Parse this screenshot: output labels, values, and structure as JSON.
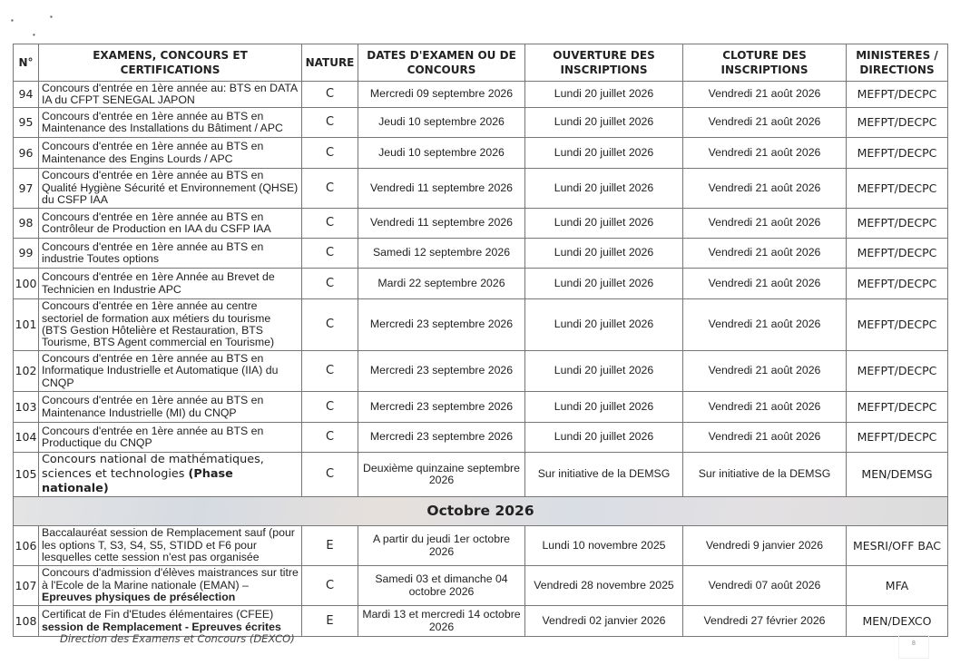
{
  "headers": {
    "num": "N°",
    "exam": "EXAMENS, CONCOURS ET CERTIFICATIONS",
    "nature": "NATURE",
    "dates": "DATES D'EXAMEN OU DE CONCOURS",
    "ouverture": "OUVERTURE DES INSCRIPTIONS",
    "cloture": "CLOTURE DES INSCRIPTIONS",
    "ministeres": "MINISTERES / DIRECTIONS"
  },
  "rows": [
    {
      "num": "94",
      "desc": "Concours d'entrée en 1ère année au: BTS en DATA IA du CFPT SENEGAL JAPON",
      "desc_bold": "",
      "nature": "C",
      "date": "Mercredi 09 septembre 2026",
      "ouverture": "Lundi 20 juillet 2026",
      "cloture": "Vendredi 21 août 2026",
      "ministere": "MEFPT/DECPC"
    },
    {
      "num": "95",
      "desc": "Concours d'entrée en 1ère année au BTS en Maintenance des Installations du Bâtiment / APC",
      "desc_bold": "",
      "nature": "C",
      "date": "Jeudi 10 septembre 2026",
      "ouverture": "Lundi 20 juillet 2026",
      "cloture": "Vendredi 21 août 2026",
      "ministere": "MEFPT/DECPC"
    },
    {
      "num": "96",
      "desc": "Concours d'entrée en 1ère année au BTS en Maintenance des Engins Lourds / APC",
      "desc_bold": "",
      "nature": "C",
      "date": "Jeudi 10 septembre 2026",
      "ouverture": "Lundi 20 juillet 2026",
      "cloture": "Vendredi 21 août 2026",
      "ministere": "MEFPT/DECPC"
    },
    {
      "num": "97",
      "desc": "Concours d'entrée en 1ère année au BTS en Qualité Hygiène Sécurité et Environnement (QHSE) du CSFP IAA",
      "desc_bold": "",
      "nature": "C",
      "date": "Vendredi 11 septembre 2026",
      "ouverture": "Lundi 20 juillet 2026",
      "cloture": "Vendredi 21 août 2026",
      "ministere": "MEFPT/DECPC"
    },
    {
      "num": "98",
      "desc": "Concours d'entrée en 1ère année au BTS en Contrôleur de Production en IAA du CSFP IAA",
      "desc_bold": "",
      "nature": "C",
      "date": "Vendredi 11 septembre 2026",
      "ouverture": "Lundi 20 juillet 2026",
      "cloture": "Vendredi 21 août 2026",
      "ministere": "MEFPT/DECPC"
    },
    {
      "num": "99",
      "desc": "Concours d'entrée en 1ère année au BTS en industrie Toutes options",
      "desc_bold": "",
      "nature": "C",
      "date": "Samedi 12 septembre 2026",
      "ouverture": "Lundi 20 juillet 2026",
      "cloture": "Vendredi 21 août 2026",
      "ministere": "MEFPT/DECPC"
    },
    {
      "num": "100",
      "desc": "Concours d'entrée en 1ère Année au Brevet de Technicien en Industrie APC",
      "desc_bold": "",
      "nature": "C",
      "date": "Mardi 22 septembre 2026",
      "ouverture": "Lundi 20 juillet 2026",
      "cloture": "Vendredi 21 août 2026",
      "ministere": "MEFPT/DECPC"
    },
    {
      "num": "101",
      "desc": "Concours d'entrée en 1ère année au centre sectoriel de formation aux métiers  du tourisme (BTS Gestion Hôtelière et Restauration, BTS Tourisme, BTS Agent commercial en Tourisme)",
      "desc_bold": "",
      "nature": "C",
      "date": "Mercredi 23 septembre 2026",
      "ouverture": "Lundi 20 juillet 2026",
      "cloture": "Vendredi 21 août 2026",
      "ministere": "MEFPT/DECPC"
    },
    {
      "num": "102",
      "desc": "Concours d'entrée en 1ère année au BTS en Informatique Industrielle et Automatique (IIA) du CNQP",
      "desc_bold": "",
      "nature": "C",
      "date": "Mercredi 23 septembre 2026",
      "ouverture": "Lundi 20 juillet 2026",
      "cloture": "Vendredi 21 août 2026",
      "ministere": "MEFPT/DECPC"
    },
    {
      "num": "103",
      "desc": "Concours d'entrée en 1ère année au BTS en Maintenance Industrielle (MI) du CNQP",
      "desc_bold": "",
      "nature": "C",
      "date": "Mercredi 23 septembre 2026",
      "ouverture": "Lundi 20 juillet 2026",
      "cloture": "Vendredi 21 août 2026",
      "ministere": "MEFPT/DECPC"
    },
    {
      "num": "104",
      "desc": "Concours d'entrée en 1ère année au BTS en Productique du CNQP",
      "desc_bold": "",
      "nature": "C",
      "date": "Mercredi 23 septembre 2026",
      "ouverture": "Lundi 20 juillet 2026",
      "cloture": "Vendredi 21 août 2026",
      "ministere": "MEFPT/DECPC"
    },
    {
      "num": "105",
      "desc": "Concours national de mathématiques, sciences et technologies ",
      "desc_bold": "(Phase nationale)",
      "nature": "C",
      "date": "Deuxième quinzaine septembre 2026",
      "ouverture": "Sur initiative de la DEMSG",
      "cloture": "Sur initiative de la DEMSG",
      "ministere": "MEN/DEMSG"
    }
  ],
  "section": "Octobre 2026",
  "rows2": [
    {
      "num": "106",
      "desc": "Baccalauréat session de Remplacement sauf (pour les options T, S3, S4, S5, STIDD et F6 pour lesquelles cette session n'est pas organisée",
      "desc_bold": "",
      "nature": "E",
      "date": "A partir du jeudi 1er octobre 2026",
      "ouverture": "Lundi 10 novembre 2025",
      "cloture": "Vendredi 9 janvier 2026",
      "ministere": "MESRI/OFF BAC"
    },
    {
      "num": "107",
      "desc": "Concours d'admission d'élèves maistrances sur titre à l'Ecole de la Marine nationale (EMAN) – ",
      "desc_bold": "Epreuves physiques de présélection",
      "nature": "C",
      "date": "Samedi 03 et dimanche 04 octobre 2026",
      "ouverture": "Vendredi 28 novembre 2025",
      "cloture": "Vendredi 07 août 2026",
      "ministere": "MFA"
    },
    {
      "num": "108",
      "desc": "Certificat de Fin d'Etudes élémentaires (CFEE) ",
      "desc_bold": "session de Remplacement - Epreuves écrites",
      "nature": "E",
      "date": "Mardi 13 et mercredi 14 octobre 2026",
      "ouverture": "Vendredi 02 janvier 2026",
      "cloture": "Vendredi 27 février 2026",
      "ministere": "MEN/DEXCO"
    }
  ],
  "footer": "Direction des Examens et Concours (DEXCO)",
  "page_mark": "8"
}
